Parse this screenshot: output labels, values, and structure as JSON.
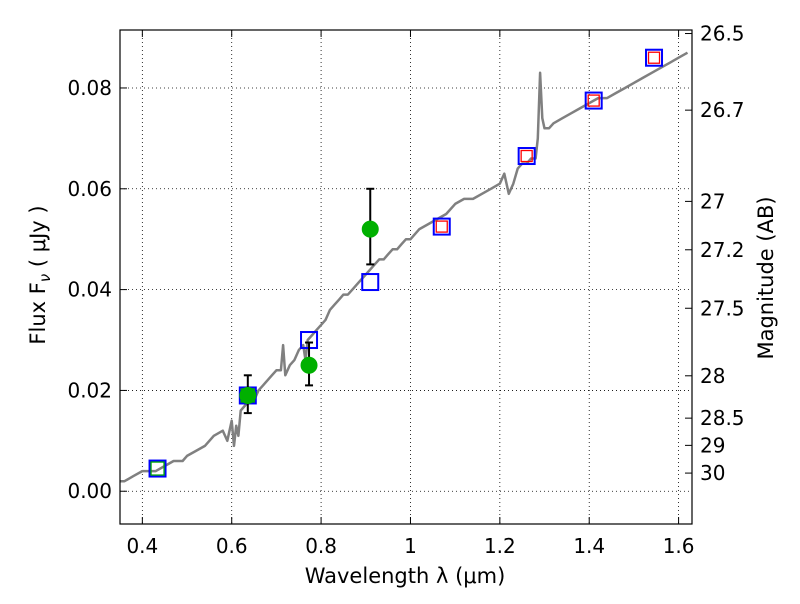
{
  "chart_data": {
    "type": "scatter",
    "title": "",
    "xlabel": "Wavelength  λ (μm)",
    "ylabel": "Flux  F",
    "ylabel_sub": "ν",
    "ylabel_units": " ( μJy )",
    "y2label": "Magnitude (AB)",
    "xlim": [
      0.35,
      1.63
    ],
    "ylim": [
      -0.0065,
      0.0915
    ],
    "grid": true,
    "x_ticks": [
      0.4,
      0.6,
      0.8,
      1.0,
      1.2,
      1.4,
      1.6
    ],
    "x_tick_labels": [
      "0.4",
      "0.6",
      "0.8",
      "1",
      "1.2",
      "1.4",
      "1.6"
    ],
    "y_ticks": [
      0.0,
      0.02,
      0.04,
      0.06,
      0.08
    ],
    "y_tick_labels": [
      "0.00",
      "0.02",
      "0.04",
      "0.06",
      "0.08"
    ],
    "mag_ticks": [
      {
        "label": "26.5",
        "y": 0.0908
      },
      {
        "label": "26.7",
        "y": 0.0756
      },
      {
        "label": "27",
        "y": 0.0575
      },
      {
        "label": "27.2",
        "y": 0.0479
      },
      {
        "label": "27.5",
        "y": 0.0363
      },
      {
        "label": "28",
        "y": 0.0229
      },
      {
        "label": "28.5",
        "y": 0.0145
      },
      {
        "label": "29",
        "y": 0.0091
      },
      {
        "label": "30",
        "y": 0.0036
      }
    ],
    "series": [
      {
        "kind": "line",
        "color": "#808080",
        "x": [
          0.35,
          0.36,
          0.38,
          0.4,
          0.42,
          0.43,
          0.45,
          0.47,
          0.49,
          0.5,
          0.52,
          0.54,
          0.56,
          0.58,
          0.59,
          0.6,
          0.605,
          0.61,
          0.615,
          0.62,
          0.63,
          0.64,
          0.65,
          0.66,
          0.67,
          0.68,
          0.69,
          0.7,
          0.71,
          0.715,
          0.72,
          0.73,
          0.74,
          0.75,
          0.76,
          0.765,
          0.77,
          0.78,
          0.79,
          0.8,
          0.81,
          0.82,
          0.83,
          0.84,
          0.85,
          0.86,
          0.87,
          0.88,
          0.89,
          0.9,
          0.91,
          0.92,
          0.93,
          0.94,
          0.95,
          0.96,
          0.97,
          0.98,
          0.99,
          1.0,
          1.02,
          1.04,
          1.06,
          1.08,
          1.1,
          1.12,
          1.14,
          1.16,
          1.18,
          1.2,
          1.21,
          1.22,
          1.23,
          1.24,
          1.25,
          1.26,
          1.27,
          1.28,
          1.285,
          1.29,
          1.295,
          1.3,
          1.31,
          1.32,
          1.34,
          1.36,
          1.38,
          1.4,
          1.42,
          1.44,
          1.46,
          1.48,
          1.5,
          1.52,
          1.54,
          1.56,
          1.58,
          1.6,
          1.62
        ],
        "y": [
          0.002,
          0.002,
          0.003,
          0.004,
          0.004,
          0.004,
          0.005,
          0.006,
          0.006,
          0.007,
          0.008,
          0.009,
          0.011,
          0.012,
          0.01,
          0.014,
          0.009,
          0.013,
          0.011,
          0.016,
          0.017,
          0.018,
          0.018,
          0.02,
          0.021,
          0.022,
          0.023,
          0.024,
          0.024,
          0.029,
          0.023,
          0.025,
          0.026,
          0.028,
          0.029,
          0.026,
          0.03,
          0.031,
          0.032,
          0.033,
          0.034,
          0.036,
          0.037,
          0.038,
          0.039,
          0.039,
          0.04,
          0.041,
          0.042,
          0.043,
          0.044,
          0.045,
          0.046,
          0.046,
          0.047,
          0.048,
          0.048,
          0.049,
          0.05,
          0.05,
          0.052,
          0.053,
          0.054,
          0.055,
          0.057,
          0.058,
          0.058,
          0.059,
          0.06,
          0.061,
          0.063,
          0.059,
          0.061,
          0.064,
          0.065,
          0.065,
          0.066,
          0.066,
          0.07,
          0.083,
          0.074,
          0.072,
          0.072,
          0.073,
          0.074,
          0.075,
          0.076,
          0.077,
          0.078,
          0.078,
          0.079,
          0.08,
          0.081,
          0.082,
          0.083,
          0.084,
          0.085,
          0.086,
          0.087
        ]
      },
      {
        "kind": "square-markers",
        "color": "#0000ff",
        "x": [
          0.434,
          0.636,
          0.773,
          0.91,
          1.07,
          1.26,
          1.41,
          1.545
        ],
        "y": [
          0.0045,
          0.019,
          0.03,
          0.0415,
          0.0525,
          0.0665,
          0.0775,
          0.086
        ]
      },
      {
        "kind": "square-markers",
        "color": "#ff0000",
        "x": [
          1.07,
          1.26,
          1.41,
          1.545
        ],
        "y": [
          0.0525,
          0.0665,
          0.0775,
          0.086
        ]
      },
      {
        "kind": "square-markers",
        "color": "#00aa00",
        "x": [
          0.434,
          0.636
        ],
        "y": [
          0.0045,
          0.019
        ]
      },
      {
        "kind": "points-with-errorbars",
        "color": "#00b000",
        "x": [
          0.636,
          0.773,
          0.91
        ],
        "y": [
          0.019,
          0.025,
          0.052
        ],
        "yerr_low": [
          0.0035,
          0.004,
          0.007
        ],
        "yerr_high": [
          0.004,
          0.0045,
          0.008
        ]
      }
    ]
  }
}
